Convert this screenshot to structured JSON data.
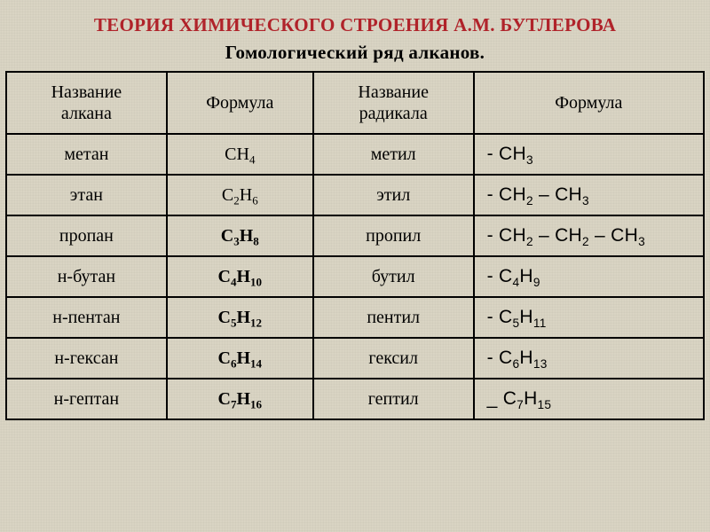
{
  "colors": {
    "background": "#d8d3c2",
    "title": "#b0232a",
    "subtitle": "#000000",
    "border": "#000000",
    "text": "#000000"
  },
  "typography": {
    "title_fontsize": 21,
    "subtitle_fontsize": 21,
    "cell_fontsize": 20,
    "font_family_main": "Times New Roman",
    "font_family_rformula": "Arial"
  },
  "title": "ТЕОРИЯ ХИМИЧЕСКОГО СТРОЕНИЯ А.М. БУТЛЕРОВА",
  "subtitle": "Гомологический ряд алканов.",
  "table": {
    "type": "table",
    "column_widths_pct": [
      23,
      21,
      23,
      33
    ],
    "columns": [
      "Название\nалкана",
      "Формула",
      "Название\nрадикала",
      "Формула"
    ],
    "rows": [
      {
        "name": "метан",
        "formula_html": "CH<sub>4</sub>",
        "formula_bold": false,
        "radical": "метил",
        "rformula_html": "- CH<sub>3</sub>"
      },
      {
        "name": "этан",
        "formula_html": "C<sub>2</sub>H<sub>6</sub>",
        "formula_bold": false,
        "radical": "этил",
        "rformula_html": "- CH<sub>2</sub> – CH<sub>3</sub>"
      },
      {
        "name": "пропан",
        "formula_html": "C<sub>3</sub>H<sub>8</sub>",
        "formula_bold": true,
        "radical": "пропил",
        "rformula_html": "- CH<sub>2</sub> – CH<sub>2</sub> – CH<sub>3</sub>"
      },
      {
        "name": "н-бутан",
        "formula_html": "C<sub>4</sub>H<sub>10</sub>",
        "formula_bold": true,
        "radical": "бутил",
        "rformula_html": "- C<sub>4</sub>H<sub>9</sub>"
      },
      {
        "name": "н-пентан",
        "formula_html": "C<sub>5</sub>H<sub>12</sub>",
        "formula_bold": true,
        "radical": "пентил",
        "rformula_html": "- C<sub>5</sub>H<sub>11</sub>"
      },
      {
        "name": "н-гексан",
        "formula_html": "C<sub>6</sub>H<sub>14</sub>",
        "formula_bold": true,
        "radical": "гексил",
        "rformula_html": "- C<sub>6</sub>H<sub>13</sub>"
      },
      {
        "name": "н-гептан",
        "formula_html": "C<sub>7</sub>H<sub>16</sub>",
        "formula_bold": true,
        "radical": "гептил",
        "rformula_html": "_ C<sub>7</sub>H<sub>15</sub>"
      }
    ]
  }
}
